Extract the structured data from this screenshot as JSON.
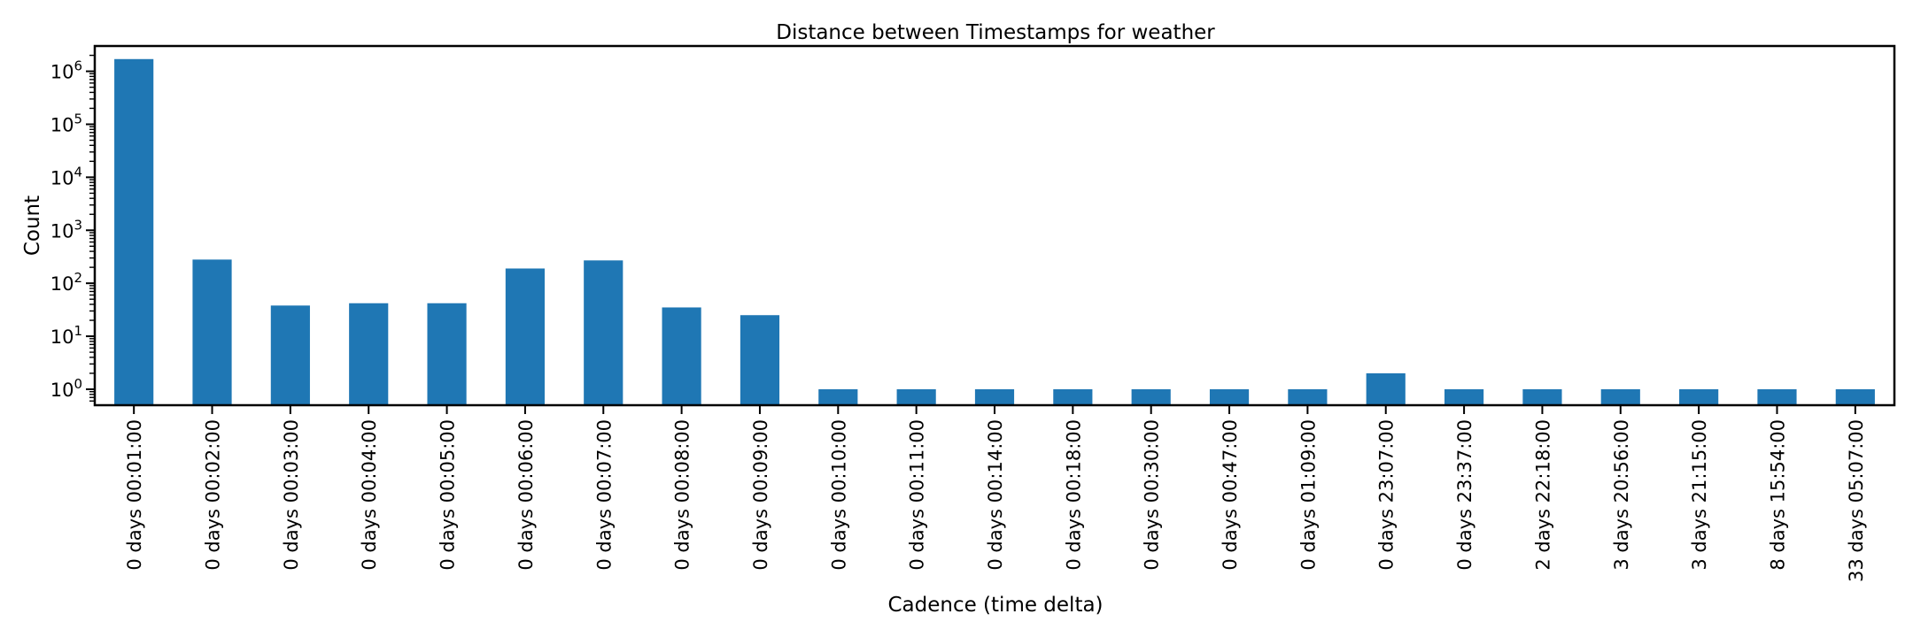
{
  "chart_data": {
    "type": "bar",
    "title": "Distance between Timestamps for weather",
    "xlabel": "Cadence (time delta)",
    "ylabel": "Count",
    "yscale": "log",
    "ylim": [
      0.5,
      3000000
    ],
    "grid": false,
    "legend": "none",
    "bar_color": "#1f77b4",
    "yticks": [
      {
        "base": "10",
        "exp": "0",
        "value": 1
      },
      {
        "base": "10",
        "exp": "1",
        "value": 10
      },
      {
        "base": "10",
        "exp": "2",
        "value": 100
      },
      {
        "base": "10",
        "exp": "3",
        "value": 1000
      },
      {
        "base": "10",
        "exp": "4",
        "value": 10000
      },
      {
        "base": "10",
        "exp": "5",
        "value": 100000
      },
      {
        "base": "10",
        "exp": "6",
        "value": 1000000
      }
    ],
    "categories": [
      "0 days 00:01:00",
      "0 days 00:02:00",
      "0 days 00:03:00",
      "0 days 00:04:00",
      "0 days 00:05:00",
      "0 days 00:06:00",
      "0 days 00:07:00",
      "0 days 00:08:00",
      "0 days 00:09:00",
      "0 days 00:10:00",
      "0 days 00:11:00",
      "0 days 00:14:00",
      "0 days 00:18:00",
      "0 days 00:30:00",
      "0 days 00:47:00",
      "0 days 01:09:00",
      "0 days 23:07:00",
      "0 days 23:37:00",
      "2 days 22:18:00",
      "3 days 20:56:00",
      "3 days 21:15:00",
      "8 days 15:54:00",
      "33 days 05:07:00"
    ],
    "values": [
      1700000,
      280,
      38,
      42,
      42,
      190,
      270,
      35,
      25,
      1,
      1,
      1,
      1,
      1,
      1,
      1,
      2,
      1,
      1,
      1,
      1,
      1,
      1
    ]
  }
}
